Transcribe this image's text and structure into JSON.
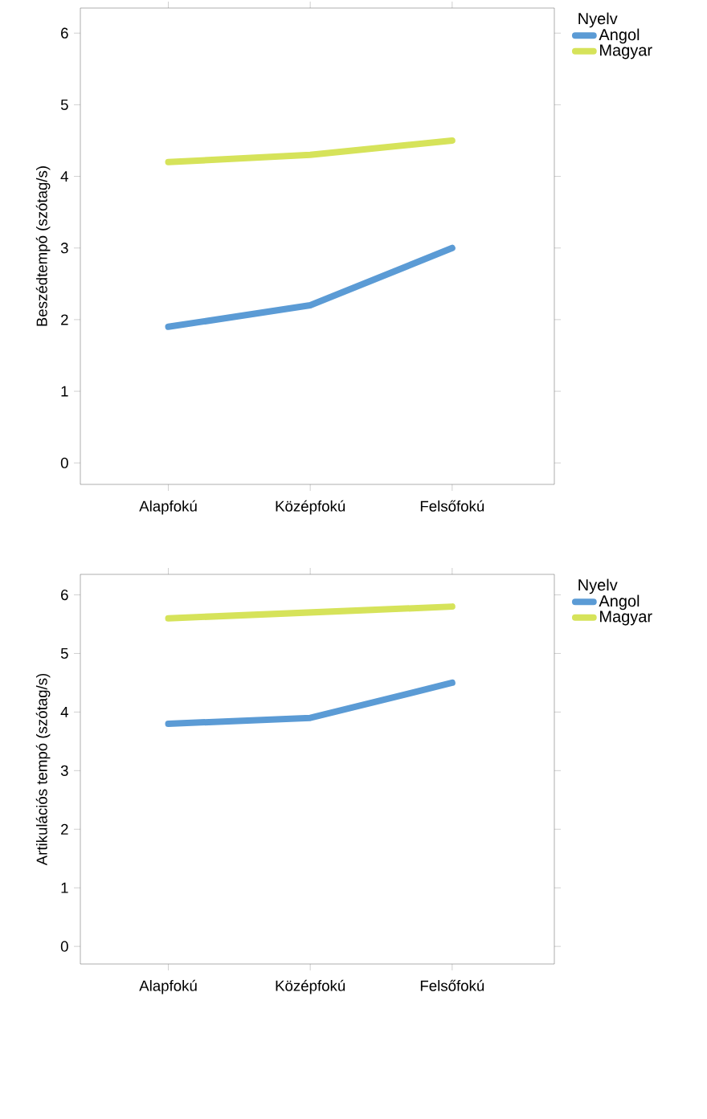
{
  "chart_data": [
    {
      "type": "line",
      "categories": [
        "Alapfokú",
        "Középfokú",
        "Felsőfokú"
      ],
      "ylabel": "Beszédtempó (szótag/s)",
      "legend_title": "Nyelv",
      "legend": "top right",
      "ylim": [
        -0.3,
        6.35
      ],
      "yticks": [
        0,
        1,
        2,
        3,
        4,
        5,
        6
      ],
      "series": [
        {
          "name": "Angol",
          "color": "#5b9bd5",
          "values": [
            1.9,
            2.2,
            3.0
          ]
        },
        {
          "name": "Magyar",
          "color": "#d6e35a",
          "values": [
            4.2,
            4.3,
            4.5
          ]
        }
      ]
    },
    {
      "type": "line",
      "categories": [
        "Alapfokú",
        "Középfokú",
        "Felsőfokú"
      ],
      "ylabel": "Artikulációs tempó (szótag/s)",
      "legend_title": "Nyelv",
      "legend": "top right",
      "ylim": [
        -0.3,
        6.35
      ],
      "yticks": [
        0,
        1,
        2,
        3,
        4,
        5,
        6
      ],
      "series": [
        {
          "name": "Angol",
          "color": "#5b9bd5",
          "values": [
            3.8,
            3.9,
            4.5
          ]
        },
        {
          "name": "Magyar",
          "color": "#d6e35a",
          "values": [
            5.6,
            5.7,
            5.8
          ]
        }
      ]
    }
  ]
}
